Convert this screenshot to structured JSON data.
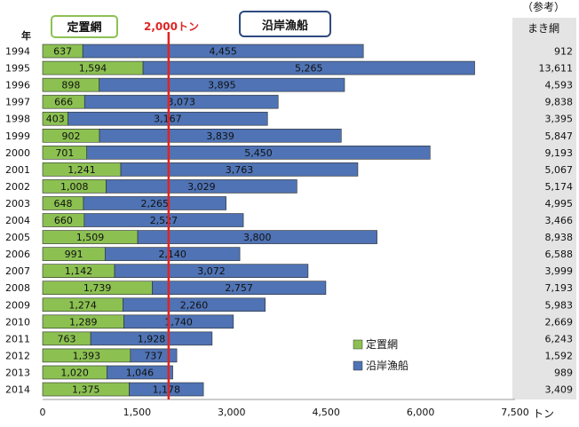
{
  "chart_data": {
    "type": "bar",
    "stacked": true,
    "orientation": "horizontal",
    "y_axis_label": "年",
    "x_unit": "トン",
    "xlim": [
      0,
      7500
    ],
    "x_ticks": [
      0,
      1500,
      3000,
      4500,
      6000,
      7500
    ],
    "x_tick_labels": [
      "0",
      "1,500",
      "3,000",
      "4,500",
      "6,000",
      "7,500"
    ],
    "categories": [
      "1994",
      "1995",
      "1996",
      "1997",
      "1998",
      "1999",
      "2000",
      "2001",
      "2002",
      "2003",
      "2004",
      "2005",
      "2006",
      "2007",
      "2008",
      "2009",
      "2010",
      "2011",
      "2012",
      "2013",
      "2014"
    ],
    "series": [
      {
        "name": "定置網",
        "color": "#8cc152",
        "values": [
          637,
          1594,
          898,
          666,
          403,
          902,
          701,
          1241,
          1008,
          648,
          660,
          1509,
          991,
          1142,
          1739,
          1274,
          1289,
          763,
          1393,
          1020,
          1375
        ],
        "labels": [
          "637",
          "1,594",
          "898",
          "666",
          "403",
          "902",
          "701",
          "1,241",
          "1,008",
          "648",
          "660",
          "1,509",
          "991",
          "1,142",
          "1,739",
          "1,274",
          "1,289",
          "763",
          "1,393",
          "1,020",
          "1,375"
        ]
      },
      {
        "name": "沿岸漁船",
        "color": "#4f73b4",
        "values": [
          4455,
          5265,
          3895,
          3073,
          3167,
          3839,
          5450,
          3763,
          3029,
          2265,
          2527,
          3800,
          2140,
          3072,
          2757,
          2260,
          1740,
          1928,
          737,
          1046,
          1178
        ],
        "labels": [
          "4,455",
          "5,265",
          "3,895",
          "3,073",
          "3,167",
          "3,839",
          "5,450",
          "3,763",
          "3,029",
          "2,265",
          "2,527",
          "3,800",
          "2,140",
          "3,072",
          "2,757",
          "2,260",
          "1,740",
          "1,928",
          "737",
          "1,046",
          "1,178"
        ]
      }
    ],
    "reference_line": {
      "value": 2000,
      "label": "2,000トン",
      "color": "#e02424"
    },
    "callouts": {
      "teichi": "定置網",
      "engan": "沿岸漁船"
    },
    "legend": {
      "position": "bottom-right",
      "items": [
        {
          "label": "定置網",
          "color": "#8cc152"
        },
        {
          "label": "沿岸漁船",
          "color": "#4f73b4"
        }
      ]
    },
    "reference_column": {
      "title": "（参考）",
      "header": "まき網",
      "values": [
        "912",
        "13,611",
        "4,593",
        "9,838",
        "3,395",
        "5,847",
        "9,193",
        "5,067",
        "5,174",
        "4,995",
        "3,466",
        "8,938",
        "6,588",
        "3,999",
        "7,193",
        "5,983",
        "2,669",
        "6,243",
        "1,592",
        "989",
        "3,409"
      ]
    }
  }
}
